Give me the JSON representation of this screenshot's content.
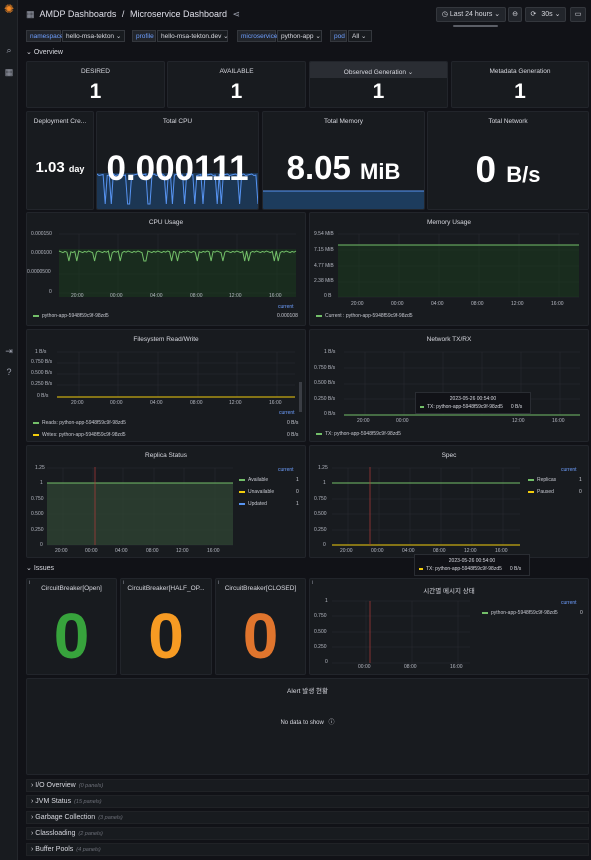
{
  "app": {
    "breadcrumb_root": "AMDP Dashboards",
    "breadcrumb_sep": "/",
    "dashboard_title": "Microservice Dashboard",
    "time_range": "Last 24 hours",
    "refresh": "30s"
  },
  "variables": [
    {
      "label": "namespace",
      "value": "hello-msa-tekton"
    },
    {
      "label": "profile",
      "value": "hello-msa-tekton.dev"
    },
    {
      "label": "microservice",
      "value": "python-app"
    },
    {
      "label": "pod",
      "value": "All"
    }
  ],
  "rows": {
    "overview": "Overview",
    "issues": "Issues",
    "collapsed": [
      {
        "title": "I/O Overview",
        "count": "(0 panels)"
      },
      {
        "title": "JVM Status",
        "count": "(15 panels)"
      },
      {
        "title": "Garbage Collection",
        "count": "(3 panels)"
      },
      {
        "title": "Classloading",
        "count": "(2 panels)"
      },
      {
        "title": "Buffer Pools",
        "count": "(4 panels)"
      }
    ]
  },
  "stats": {
    "desired": {
      "title": "DESIRED",
      "value": "1"
    },
    "available": {
      "title": "AVAILABLE",
      "value": "1"
    },
    "observed": {
      "title": "Observed Generation",
      "value": "1"
    },
    "metadata": {
      "title": "Metadata Generation",
      "value": "1"
    },
    "deployment": {
      "title": "Deployment Cre...",
      "value": "1.03",
      "unit": "day"
    },
    "cpu": {
      "title": "Total CPU",
      "value": "0.000111"
    },
    "memory": {
      "title": "Total Memory",
      "value": "8.05",
      "unit": "MiB"
    },
    "network": {
      "title": "Total Network",
      "value": "0",
      "unit": "B/s"
    }
  },
  "x_ticks": [
    "20:00",
    "00:00",
    "04:00",
    "08:00",
    "12:00",
    "16:00"
  ],
  "cpu_usage": {
    "title": "CPU Usage",
    "y_ticks": [
      "0.000150",
      "0.000100",
      "0.0000500",
      "0"
    ],
    "legend": "python-app-5948f59c9f-98zd5",
    "current_header": "current",
    "current": "0.000108"
  },
  "memory_usage": {
    "title": "Memory Usage",
    "y_ticks": [
      "9.54 MiB",
      "7.15 MiB",
      "4.77 MiB",
      "2.38 MiB",
      "0 B"
    ],
    "legend": "Current : python-app-5948f59c9f-98zd5"
  },
  "fs": {
    "title": "Filesystem Read/Write",
    "y_ticks": [
      "1 B/s",
      "0.750 B/s",
      "0.500 B/s",
      "0.250 B/s",
      "0 B/s"
    ],
    "current_header": "current",
    "reads": "Reads: python-app-5948f59c9f-98zd5",
    "reads_val": "0 B/s",
    "writes": "Writes: python-app-5948f59c9f-98zd5",
    "writes_val": "0 B/s"
  },
  "net": {
    "title": "Network TX/RX",
    "y_ticks": [
      "1 B/s",
      "0.750 B/s",
      "0.500 B/s",
      "0.250 B/s",
      "0 B/s"
    ],
    "legend": "TX: python-app-5948f59c9f-98zd5",
    "tooltip_time": "2023-05-26 00:54:00",
    "tooltip_label": "TX: python-app-5948f59c9f-98zd5",
    "tooltip_value": "0 B/s"
  },
  "replica": {
    "title": "Replica Status",
    "y_ticks": [
      "1.25",
      "1",
      "0.750",
      "0.500",
      "0.250",
      "0"
    ],
    "current_header": "current",
    "legend": [
      {
        "name": "Available",
        "value": "1",
        "color": "#73bf69"
      },
      {
        "name": "Unavailable",
        "value": "0",
        "color": "#f2cc0c"
      },
      {
        "name": "Updated",
        "value": "1",
        "color": "#5794f2"
      }
    ]
  },
  "spec": {
    "title": "Spec",
    "y_ticks": [
      "1.25",
      "1",
      "0.750",
      "0.500",
      "0.250",
      "0"
    ],
    "current_header": "current",
    "legend": [
      {
        "name": "Replicas",
        "value": "1",
        "color": "#73bf69"
      },
      {
        "name": "Paused",
        "value": "0",
        "color": "#f2cc0c"
      }
    ],
    "tooltip_time": "2023-05-26 00:54:00",
    "tooltip_label": "TX: python-app-5948f59c9f-98zd5",
    "tooltip_value": "0 B/s"
  },
  "issues": {
    "cb_open": {
      "title": "CircuitBreaker[Open]",
      "value": "0",
      "color": "#37a33c"
    },
    "cb_half": {
      "title": "CircuitBreaker[HALF_OP...",
      "value": "0",
      "color": "#f79b23"
    },
    "cb_closed": {
      "title": "CircuitBreaker[CLOSED]",
      "value": "0",
      "color": "#e0752d"
    },
    "timeline": {
      "title": "시간별 메시지 상태",
      "y_ticks": [
        "1",
        "0.750",
        "0.500",
        "0.250",
        "0"
      ],
      "x_ticks": [
        "00:00",
        "08:00",
        "16:00"
      ],
      "current_header": "current",
      "legend": "python-app-5948f59c9f-98zd5",
      "legend_val": "0"
    },
    "alert": {
      "title": "Alert 발생 현황",
      "empty": "No data to show"
    }
  },
  "colors": {
    "green": "#73bf69",
    "yellow": "#f2cc0c",
    "blue": "#5794f2",
    "accent": "#6e9fff"
  }
}
